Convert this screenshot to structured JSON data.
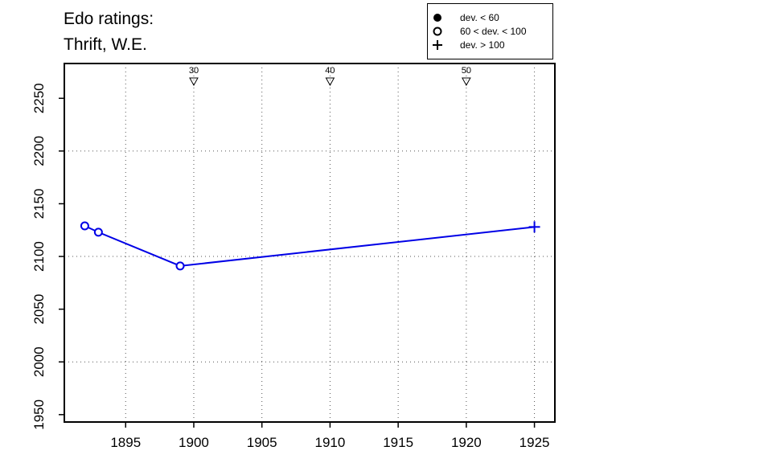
{
  "title": {
    "line1": "Edo ratings:",
    "line2": "Thrift, W.E."
  },
  "legend": [
    {
      "symbol": "filled-circle",
      "label": "dev. < 60"
    },
    {
      "symbol": "open-circle",
      "label": "60 < dev. < 100"
    },
    {
      "symbol": "plus",
      "label": "dev. > 100"
    }
  ],
  "colors": {
    "series": "#0000e6",
    "axis": "#000000",
    "grid": "#555555"
  },
  "chart_data": {
    "type": "line",
    "title": "Edo ratings:",
    "subtitle": "Thrift, W.E.",
    "xlabel": "",
    "ylabel": "",
    "xlim": [
      1890.5,
      1926.5
    ],
    "ylim": [
      1943,
      2283
    ],
    "x_ticks": [
      1895,
      1900,
      1905,
      1910,
      1915,
      1920,
      1925
    ],
    "y_ticks": [
      1950,
      2000,
      2050,
      2100,
      2150,
      2200,
      2250
    ],
    "x_grid": [
      1895,
      1900,
      1905,
      1910,
      1915,
      1920,
      1925
    ],
    "y_grid": [
      2000,
      2100,
      2200
    ],
    "grid": true,
    "legend_position": "top-right",
    "series": [
      {
        "color": "#0000e6",
        "points": [
          {
            "x": 1892,
            "y": 2129,
            "marker": "open-circle"
          },
          {
            "x": 1893,
            "y": 2123,
            "marker": "open-circle"
          },
          {
            "x": 1899,
            "y": 2091,
            "marker": "open-circle"
          },
          {
            "x": 1925,
            "y": 2128,
            "marker": "plus"
          }
        ]
      }
    ],
    "top_markers": [
      {
        "x": 1900,
        "label": "30"
      },
      {
        "x": 1910,
        "label": "40"
      },
      {
        "x": 1920,
        "label": "50"
      }
    ]
  }
}
